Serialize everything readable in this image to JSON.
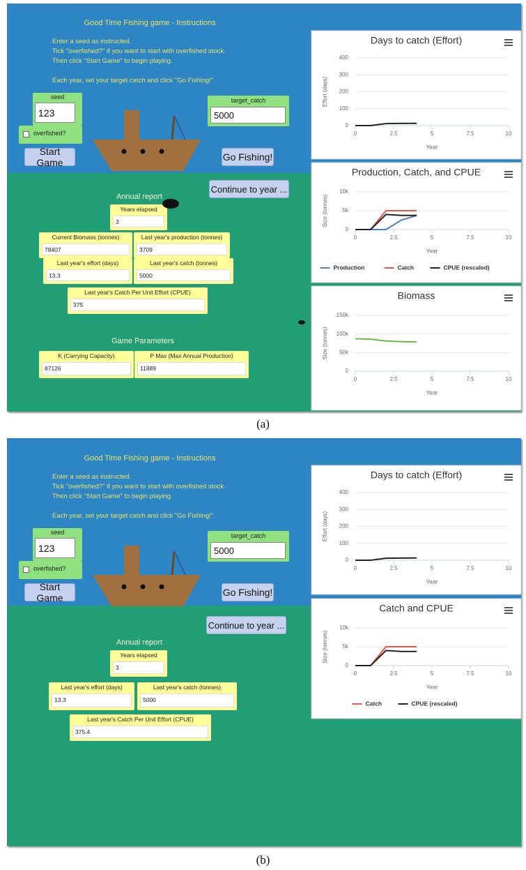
{
  "panels": [
    {
      "instructions": {
        "title": "Good Time Fishing game - Instructions",
        "lines": [
          "Enter a seed as instructed.",
          "Tick \"overfished?\" if you want to start with overfished stock.",
          "Then click \"Start Game\" to begin playing.",
          "Each year, set your target catch and click \"Go Fishing!\""
        ]
      },
      "controls": {
        "seed_label": "seed",
        "seed": "123",
        "overfished": "overfished?",
        "start": "Start Game",
        "target_label": "target_catch",
        "target": "5000",
        "go": "Go Fishing!",
        "continue": "Continue to year ..."
      },
      "report": {
        "title": "Annual report",
        "fields": [
          {
            "label": "Years elapsed",
            "value": "3"
          },
          {
            "label": "Current Biomass (tonnes)",
            "value": "78407"
          },
          {
            "label": "Last year's production (tonnes)",
            "value": "3709"
          },
          {
            "label": "Last year's effort (days)",
            "value": "13.3"
          },
          {
            "label": "Last year's catch (tonnes)",
            "value": "5000"
          },
          {
            "label": "Last year's Catch Per Unit Effort (CPUE)",
            "value": "375"
          }
        ]
      },
      "parameters": {
        "title": "Game Parameters",
        "fields": [
          {
            "label": "K (Carrying Capacity)",
            "value": "87126"
          },
          {
            "label": "P Max (Max Annual Production)",
            "value": "11889"
          }
        ]
      },
      "charts": [
        {
          "type": "line",
          "title": "Days to catch (Effort)",
          "ylabel": "Effort (days)",
          "xlabel": "Year",
          "x": [
            0,
            1,
            2,
            3,
            4
          ],
          "xlim": [
            0,
            10
          ],
          "xticks": [
            0,
            2.5,
            5,
            7.5,
            10
          ],
          "ylim": [
            0,
            400
          ],
          "yticks": [
            0,
            100,
            200,
            300,
            400
          ],
          "grid": true,
          "series": [
            {
              "color": "#222222",
              "values": [
                0,
                0,
                12,
                13,
                13.3
              ]
            }
          ]
        },
        {
          "type": "line",
          "title": "Production, Catch, and CPUE",
          "ylabel": "Size (tonnes)",
          "xlabel": "Year",
          "x": [
            0,
            1,
            2,
            3,
            4
          ],
          "xlim": [
            0,
            10
          ],
          "xticks": [
            0,
            2.5,
            5,
            7.5,
            10
          ],
          "ylim": [
            0,
            10000
          ],
          "yticks": [
            0,
            {
              "value": 5000,
              "label": "5k"
            },
            {
              "value": 10000,
              "label": "10k"
            }
          ],
          "grid": true,
          "legend": "bottom",
          "series": [
            {
              "name": "Production",
              "color": "#4a7fc1",
              "values": [
                0,
                0,
                0,
                2500,
                3709
              ]
            },
            {
              "name": "Catch",
              "color": "#e8564a",
              "values": [
                0,
                0,
                5000,
                5000,
                5000
              ]
            },
            {
              "name": "CPUE (rescaled)",
              "color": "#222222",
              "values": [
                0,
                0,
                4000,
                3750,
                3750
              ]
            }
          ]
        },
        {
          "type": "line",
          "title": "Biomass",
          "ylabel": "Size (tonnes)",
          "xlabel": "Year",
          "x": [
            0,
            1,
            2,
            3,
            4
          ],
          "xlim": [
            0,
            10
          ],
          "xticks": [
            0,
            2.5,
            5,
            7.5,
            10
          ],
          "ylim": [
            0,
            150000
          ],
          "yticks": [
            0,
            {
              "value": 50000,
              "label": "50k"
            },
            {
              "value": 100000,
              "label": "100k"
            },
            {
              "value": 150000,
              "label": "150k"
            }
          ],
          "grid": true,
          "series": [
            {
              "color": "#66bb44",
              "values": [
                87126,
                86000,
                81000,
                79500,
                78407
              ]
            }
          ]
        }
      ],
      "caption": "(a)"
    },
    {
      "instructions": {
        "title": "Good Time Fishing game - Instructions",
        "lines": [
          "Enter a seed as instructed.",
          "Tick \"overfished?\" if you want to start with overfished stock.",
          "Then click \"Start Game\" to begin playing.",
          "Each year, set your target catch and click \"Go Fishing!\""
        ]
      },
      "controls": {
        "seed_label": "seed",
        "seed": "123",
        "overfished": "overfished?",
        "start": "Start Game",
        "target_label": "target_catch",
        "target": "5000",
        "go": "Go Fishing!",
        "continue": "Continue to year ..."
      },
      "report": {
        "title": "Annual report",
        "fields": [
          {
            "label": "Years elapsed",
            "value": "3"
          },
          {
            "label": "Last year's effort (days)",
            "value": "13.3"
          },
          {
            "label": "Last year's catch (tonnes)",
            "value": "5000"
          },
          {
            "label": "Last year's Catch Per Unit Effort (CPUE)",
            "value": "375.4"
          }
        ]
      },
      "charts": [
        {
          "type": "line",
          "title": "Days to catch (Effort)",
          "ylabel": "Effort (days)",
          "xlabel": "Year",
          "x": [
            0,
            1,
            2,
            3,
            4
          ],
          "xlim": [
            0,
            10
          ],
          "xticks": [
            0,
            2.5,
            5,
            7.5,
            10
          ],
          "ylim": [
            0,
            400
          ],
          "yticks": [
            0,
            100,
            200,
            300,
            400
          ],
          "grid": true,
          "series": [
            {
              "color": "#222222",
              "values": [
                0,
                0,
                12,
                13,
                13.3
              ]
            }
          ]
        },
        {
          "type": "line",
          "title": "Catch and CPUE",
          "ylabel": "Size (tonnes)",
          "xlabel": "Year",
          "x": [
            0,
            1,
            2,
            3,
            4
          ],
          "xlim": [
            0,
            10
          ],
          "xticks": [
            0,
            2.5,
            5,
            7.5,
            10
          ],
          "ylim": [
            0,
            10000
          ],
          "yticks": [
            0,
            {
              "value": 5000,
              "label": "5k"
            },
            {
              "value": 10000,
              "label": "10k"
            }
          ],
          "grid": true,
          "legend": "bottom",
          "series": [
            {
              "name": "Catch",
              "color": "#e8564a",
              "values": [
                0,
                0,
                5000,
                5000,
                5000
              ]
            },
            {
              "name": "CPUE (rescaled)",
              "color": "#222222",
              "values": [
                0,
                0,
                4000,
                3754,
                3754
              ]
            }
          ]
        }
      ],
      "caption": "(b)"
    }
  ]
}
